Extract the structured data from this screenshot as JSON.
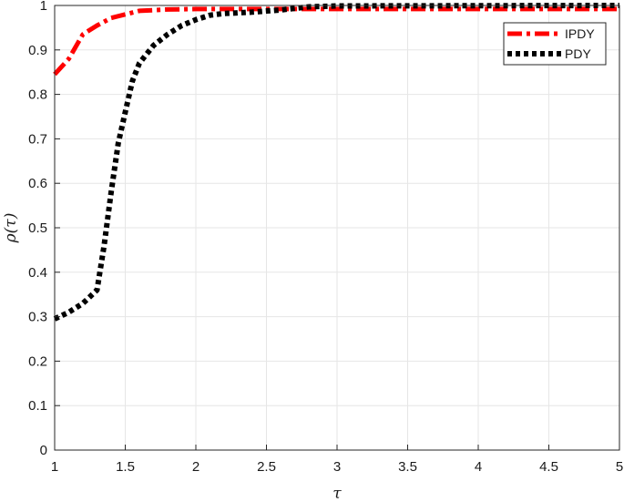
{
  "chart_data": {
    "type": "line",
    "xlabel": "τ",
    "ylabel": "ρ(τ)",
    "xlim": [
      1,
      5
    ],
    "ylim": [
      0,
      1
    ],
    "xticks": [
      "1",
      "1.5",
      "2",
      "2.5",
      "3",
      "3.5",
      "4",
      "4.5",
      "5"
    ],
    "yticks": [
      "0",
      "0.1",
      "0.2",
      "0.3",
      "0.4",
      "0.5",
      "0.6",
      "0.7",
      "0.8",
      "0.9",
      "1"
    ],
    "grid": true,
    "legend_position": "top-right",
    "series": [
      {
        "name": "IPDY",
        "color": "#ff0000",
        "style": "dash-dot",
        "x": [
          1.0,
          1.1,
          1.2,
          1.3,
          1.4,
          1.5,
          1.6,
          1.8,
          2.0,
          2.5,
          3.0,
          5.0
        ],
        "y": [
          0.845,
          0.88,
          0.935,
          0.955,
          0.972,
          0.98,
          0.988,
          0.991,
          0.992,
          0.992,
          0.992,
          0.992
        ]
      },
      {
        "name": "PDY",
        "color": "#000000",
        "style": "dotted",
        "x": [
          1.0,
          1.1,
          1.2,
          1.3,
          1.35,
          1.4,
          1.45,
          1.5,
          1.55,
          1.6,
          1.7,
          1.8,
          1.9,
          2.0,
          2.1,
          2.2,
          2.4,
          2.6,
          2.8,
          3.0,
          5.0
        ],
        "y": [
          0.295,
          0.31,
          0.33,
          0.36,
          0.46,
          0.58,
          0.69,
          0.76,
          0.83,
          0.87,
          0.91,
          0.935,
          0.955,
          0.968,
          0.978,
          0.982,
          0.985,
          0.99,
          0.997,
          0.999,
          1.0
        ]
      }
    ]
  }
}
